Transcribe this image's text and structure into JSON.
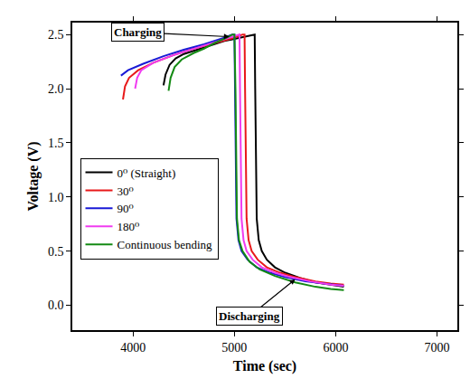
{
  "chart_data": {
    "type": "line",
    "x_label": "Time (sec)",
    "y_label": "Voltage (V)",
    "xlim": [
      3400,
      7200
    ],
    "xticks": [
      4000,
      5000,
      6000,
      7000
    ],
    "ylim": [
      -0.23,
      2.61
    ],
    "yticks": [
      {
        "value": 0,
        "label": "0.0"
      },
      {
        "value": 0.5,
        "label": "0.5"
      },
      {
        "value": 1,
        "label": "1.0"
      },
      {
        "value": 1.5,
        "label": "1.5"
      },
      {
        "value": 2,
        "label": "2.0"
      },
      {
        "value": 2.5,
        "label": "2.5"
      }
    ],
    "grid": false,
    "legend": "left",
    "annotations": [
      {
        "text": "Charging",
        "x": 4950,
        "y": 2.48,
        "text_x": 4050,
        "text_y": 2.52
      },
      {
        "text": "Discharging",
        "x": 5600,
        "y": 0.24,
        "text_x": 5150,
        "text_y": -0.1
      }
    ],
    "series": [
      {
        "name": "0⁰ (Straight)",
        "color": "#000000",
        "line_style": "solid",
        "x": [
          4300,
          4320,
          4360,
          4420,
          4500,
          4600,
          4700,
          4800,
          4900,
          5000,
          5100,
          5180,
          5200,
          5205,
          5210,
          5220,
          5240,
          5270,
          5320,
          5400,
          5500,
          5650,
          5800,
          5950,
          6080
        ],
        "values": [
          2.03,
          2.13,
          2.22,
          2.28,
          2.32,
          2.35,
          2.38,
          2.41,
          2.44,
          2.46,
          2.48,
          2.5,
          2.5,
          2.0,
          1.3,
          0.8,
          0.6,
          0.5,
          0.42,
          0.35,
          0.3,
          0.25,
          0.21,
          0.19,
          0.17
        ]
      },
      {
        "name": "30⁰",
        "color": "#e8191a",
        "line_style": "solid",
        "x": [
          3900,
          3920,
          3960,
          4050,
          4200,
          4400,
          4600,
          4800,
          5000,
          5080,
          5100,
          5105,
          5110,
          5120,
          5140,
          5170,
          5230,
          5320,
          5450,
          5600,
          5800,
          5950,
          6080
        ],
        "values": [
          1.9,
          2.02,
          2.1,
          2.17,
          2.24,
          2.31,
          2.37,
          2.42,
          2.47,
          2.5,
          2.5,
          2.0,
          1.3,
          0.8,
          0.6,
          0.5,
          0.42,
          0.35,
          0.3,
          0.26,
          0.22,
          0.2,
          0.19
        ]
      },
      {
        "name": "90⁰",
        "color": "#1a1ad6",
        "line_style": "solid",
        "x": [
          3880,
          3950,
          4100,
          4300,
          4500,
          4700,
          4900,
          4980,
          5000,
          5005,
          5010,
          5020,
          5040,
          5070,
          5130,
          5220,
          5350,
          5500,
          5700,
          5900,
          6080
        ],
        "values": [
          2.12,
          2.17,
          2.23,
          2.3,
          2.36,
          2.41,
          2.47,
          2.5,
          2.5,
          2.0,
          1.3,
          0.8,
          0.6,
          0.5,
          0.42,
          0.35,
          0.3,
          0.26,
          0.22,
          0.2,
          0.18
        ]
      },
      {
        "name": "180⁰",
        "color": "#f03cf0",
        "line_style": "solid",
        "x": [
          4020,
          4040,
          4080,
          4200,
          4400,
          4600,
          4800,
          4950,
          5030,
          5050,
          5055,
          5060,
          5070,
          5090,
          5120,
          5180,
          5270,
          5400,
          5550,
          5750,
          5950,
          6080
        ],
        "values": [
          2.0,
          2.1,
          2.17,
          2.24,
          2.31,
          2.37,
          2.43,
          2.47,
          2.5,
          2.5,
          2.0,
          1.3,
          0.8,
          0.6,
          0.5,
          0.42,
          0.35,
          0.3,
          0.26,
          0.22,
          0.19,
          0.18
        ]
      },
      {
        "name": "Continuous bending",
        "color": "#138a13",
        "line_style": "solid",
        "x": [
          4350,
          4370,
          4410,
          4480,
          4600,
          4700,
          4800,
          4900,
          4980,
          5000,
          5010,
          5015,
          5025,
          5045,
          5080,
          5150,
          5250,
          5400,
          5600,
          5800,
          5950,
          6080
        ],
        "values": [
          1.98,
          2.1,
          2.2,
          2.27,
          2.33,
          2.37,
          2.42,
          2.46,
          2.5,
          2.5,
          2.0,
          1.3,
          0.8,
          0.6,
          0.5,
          0.4,
          0.33,
          0.27,
          0.21,
          0.17,
          0.15,
          0.14
        ]
      }
    ]
  }
}
